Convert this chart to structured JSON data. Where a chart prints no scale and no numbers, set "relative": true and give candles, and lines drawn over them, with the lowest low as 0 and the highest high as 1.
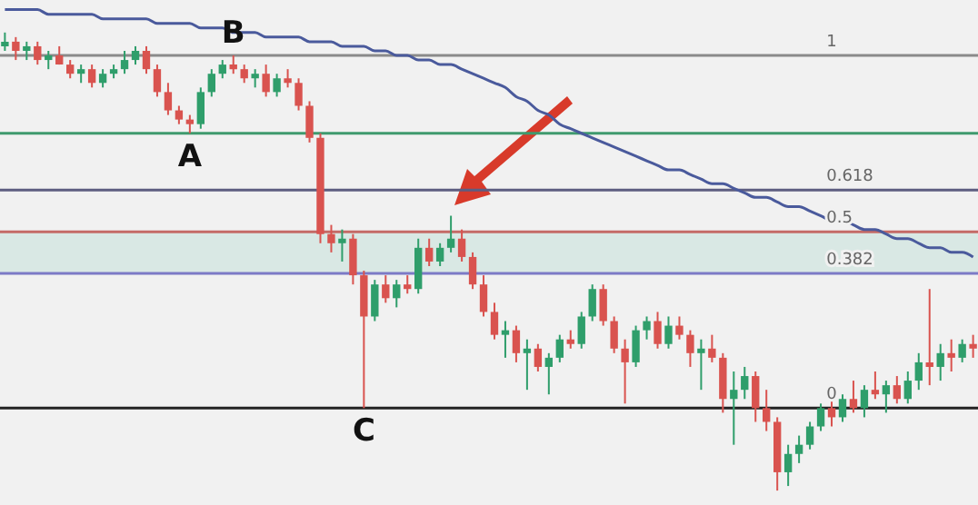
{
  "chart_data": {
    "type": "candlestick",
    "relative": true,
    "categories": [
      null,
      null,
      null,
      null,
      null,
      null,
      null,
      null,
      null,
      null,
      null,
      null,
      null,
      null,
      null,
      null,
      null,
      null,
      null,
      null,
      null,
      null,
      null,
      null,
      null,
      null,
      null,
      null,
      null,
      null,
      null,
      null,
      null,
      null,
      null,
      null,
      null,
      null,
      null,
      null,
      null,
      null,
      null,
      null,
      null,
      null,
      null,
      null,
      null,
      null,
      null,
      null,
      null,
      null,
      null,
      null,
      null,
      null,
      null,
      null,
      null,
      null,
      null,
      null,
      null,
      null,
      null,
      null,
      null,
      null,
      null,
      null,
      null,
      null,
      null,
      null,
      null,
      null,
      null,
      null,
      null,
      null,
      null,
      null,
      null,
      null,
      null,
      null,
      null,
      null
    ],
    "ohlc": [
      [
        0.97,
        1.0,
        0.96,
        0.98
      ],
      [
        0.98,
        0.99,
        0.94,
        0.96
      ],
      [
        0.96,
        0.98,
        0.94,
        0.97
      ],
      [
        0.97,
        0.98,
        0.93,
        0.94
      ],
      [
        0.94,
        0.96,
        0.92,
        0.95
      ],
      [
        0.95,
        0.97,
        0.93,
        0.93
      ],
      [
        0.93,
        0.94,
        0.9,
        0.91
      ],
      [
        0.91,
        0.93,
        0.89,
        0.92
      ],
      [
        0.92,
        0.93,
        0.88,
        0.89
      ],
      [
        0.89,
        0.92,
        0.88,
        0.91
      ],
      [
        0.91,
        0.93,
        0.9,
        0.92
      ],
      [
        0.92,
        0.96,
        0.91,
        0.94
      ],
      [
        0.94,
        0.97,
        0.93,
        0.96
      ],
      [
        0.96,
        0.97,
        0.91,
        0.92
      ],
      [
        0.92,
        0.93,
        0.86,
        0.87
      ],
      [
        0.87,
        0.89,
        0.82,
        0.83
      ],
      [
        0.83,
        0.84,
        0.8,
        0.81
      ],
      [
        0.81,
        0.82,
        0.78,
        0.8
      ],
      [
        0.8,
        0.88,
        0.79,
        0.87
      ],
      [
        0.87,
        0.92,
        0.86,
        0.91
      ],
      [
        0.91,
        0.94,
        0.9,
        0.93
      ],
      [
        0.93,
        0.95,
        0.91,
        0.92
      ],
      [
        0.92,
        0.93,
        0.89,
        0.9
      ],
      [
        0.9,
        0.92,
        0.88,
        0.91
      ],
      [
        0.91,
        0.93,
        0.86,
        0.87
      ],
      [
        0.87,
        0.91,
        0.86,
        0.9
      ],
      [
        0.9,
        0.92,
        0.88,
        0.89
      ],
      [
        0.89,
        0.9,
        0.83,
        0.84
      ],
      [
        0.84,
        0.85,
        0.76,
        0.77
      ],
      [
        0.77,
        0.78,
        0.54,
        0.56
      ],
      [
        0.56,
        0.58,
        0.52,
        0.54
      ],
      [
        0.54,
        0.57,
        0.5,
        0.55
      ],
      [
        0.55,
        0.56,
        0.45,
        0.47
      ],
      [
        0.47,
        0.48,
        0.18,
        0.38
      ],
      [
        0.38,
        0.46,
        0.37,
        0.45
      ],
      [
        0.45,
        0.47,
        0.41,
        0.42
      ],
      [
        0.42,
        0.46,
        0.4,
        0.45
      ],
      [
        0.45,
        0.47,
        0.43,
        0.44
      ],
      [
        0.44,
        0.55,
        0.43,
        0.53
      ],
      [
        0.53,
        0.55,
        0.49,
        0.5
      ],
      [
        0.5,
        0.54,
        0.49,
        0.53
      ],
      [
        0.53,
        0.6,
        0.52,
        0.55
      ],
      [
        0.55,
        0.57,
        0.5,
        0.51
      ],
      [
        0.51,
        0.52,
        0.44,
        0.45
      ],
      [
        0.45,
        0.47,
        0.38,
        0.39
      ],
      [
        0.39,
        0.41,
        0.33,
        0.34
      ],
      [
        0.34,
        0.37,
        0.29,
        0.35
      ],
      [
        0.35,
        0.36,
        0.28,
        0.3
      ],
      [
        0.3,
        0.33,
        0.22,
        0.31
      ],
      [
        0.31,
        0.32,
        0.26,
        0.27
      ],
      [
        0.27,
        0.3,
        0.21,
        0.29
      ],
      [
        0.29,
        0.34,
        0.28,
        0.33
      ],
      [
        0.33,
        0.35,
        0.31,
        0.32
      ],
      [
        0.32,
        0.39,
        0.31,
        0.38
      ],
      [
        0.38,
        0.45,
        0.37,
        0.44
      ],
      [
        0.44,
        0.45,
        0.36,
        0.37
      ],
      [
        0.37,
        0.38,
        0.3,
        0.31
      ],
      [
        0.31,
        0.33,
        0.19,
        0.28
      ],
      [
        0.28,
        0.36,
        0.27,
        0.35
      ],
      [
        0.35,
        0.38,
        0.33,
        0.37
      ],
      [
        0.37,
        0.39,
        0.31,
        0.32
      ],
      [
        0.32,
        0.38,
        0.31,
        0.36
      ],
      [
        0.36,
        0.38,
        0.33,
        0.34
      ],
      [
        0.34,
        0.35,
        0.27,
        0.3
      ],
      [
        0.3,
        0.33,
        0.22,
        0.31
      ],
      [
        0.31,
        0.34,
        0.28,
        0.29
      ],
      [
        0.29,
        0.3,
        0.17,
        0.2
      ],
      [
        0.2,
        0.26,
        0.1,
        0.22
      ],
      [
        0.22,
        0.27,
        0.2,
        0.25
      ],
      [
        0.25,
        0.26,
        0.15,
        0.18
      ],
      [
        0.18,
        0.22,
        0.13,
        0.15
      ],
      [
        0.15,
        0.16,
        0.0,
        0.04
      ],
      [
        0.04,
        0.1,
        0.01,
        0.08
      ],
      [
        0.08,
        0.12,
        0.06,
        0.1
      ],
      [
        0.1,
        0.15,
        0.09,
        0.14
      ],
      [
        0.14,
        0.19,
        0.13,
        0.18
      ],
      [
        0.18,
        0.2,
        0.14,
        0.16
      ],
      [
        0.16,
        0.21,
        0.15,
        0.2
      ],
      [
        0.2,
        0.24,
        0.17,
        0.18
      ],
      [
        0.18,
        0.23,
        0.16,
        0.22
      ],
      [
        0.22,
        0.26,
        0.2,
        0.21
      ],
      [
        0.21,
        0.24,
        0.17,
        0.23
      ],
      [
        0.23,
        0.25,
        0.19,
        0.2
      ],
      [
        0.2,
        0.26,
        0.19,
        0.24
      ],
      [
        0.24,
        0.3,
        0.22,
        0.28
      ],
      [
        0.28,
        0.44,
        0.23,
        0.27
      ],
      [
        0.27,
        0.32,
        0.24,
        0.3
      ],
      [
        0.3,
        0.33,
        0.26,
        0.29
      ],
      [
        0.29,
        0.33,
        0.28,
        0.32
      ],
      [
        0.32,
        0.34,
        0.29,
        0.31
      ]
    ],
    "series": [
      {
        "type": "line",
        "color": "#4a5a9c",
        "values": [
          1.05,
          1.05,
          1.05,
          1.05,
          1.04,
          1.04,
          1.04,
          1.04,
          1.04,
          1.03,
          1.03,
          1.03,
          1.03,
          1.03,
          1.02,
          1.02,
          1.02,
          1.02,
          1.01,
          1.01,
          1.01,
          1.0,
          1.0,
          1.0,
          0.99,
          0.99,
          0.99,
          0.99,
          0.98,
          0.98,
          0.98,
          0.97,
          0.97,
          0.97,
          0.96,
          0.96,
          0.95,
          0.95,
          0.94,
          0.94,
          0.93,
          0.93,
          0.92,
          0.91,
          0.9,
          0.89,
          0.88,
          0.86,
          0.85,
          0.83,
          0.82,
          0.8,
          0.79,
          0.78,
          0.77,
          0.76,
          0.75,
          0.74,
          0.73,
          0.72,
          0.71,
          0.7,
          0.7,
          0.69,
          0.68,
          0.67,
          0.67,
          0.66,
          0.65,
          0.64,
          0.64,
          0.63,
          0.62,
          0.62,
          0.61,
          0.6,
          0.59,
          0.59,
          0.58,
          0.57,
          0.57,
          0.56,
          0.55,
          0.55,
          0.54,
          0.53,
          0.53,
          0.52,
          0.52,
          0.51
        ]
      }
    ],
    "ref_lines": [
      {
        "axis": "y",
        "value": 0.95,
        "color": "#8a8a8a"
      },
      {
        "axis": "y",
        "value": 0.78,
        "color": "#3f9a6e"
      },
      {
        "axis": "y",
        "value": 0.656,
        "color": "#5d5d80"
      },
      {
        "axis": "y",
        "value": 0.565,
        "color": "#c46a66"
      },
      {
        "axis": "y",
        "value": 0.474,
        "color": "#7c7ac6"
      },
      {
        "axis": "y",
        "value": 0.18,
        "color": "#222222"
      }
    ],
    "bands": [
      {
        "axis": "y",
        "from": 0.474,
        "to": 0.565,
        "color": "#d3e6e1"
      }
    ],
    "annotations": [
      {
        "text": "A",
        "y": 0.78
      },
      {
        "text": "B",
        "y": 0.95
      },
      {
        "text": "C",
        "y": 0.18
      },
      {
        "text": "1",
        "y": 0.95
      },
      {
        "text": "0.618",
        "y": 0.656
      },
      {
        "text": "0.5",
        "y": 0.565
      },
      {
        "text": "0.382",
        "y": 0.474
      },
      {
        "text": "0",
        "y": 0.18
      }
    ]
  }
}
